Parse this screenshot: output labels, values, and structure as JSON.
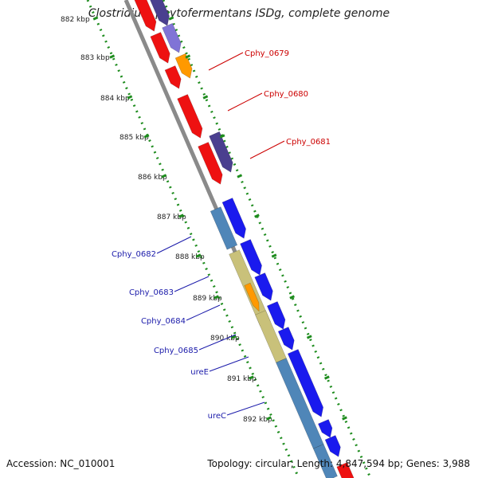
{
  "title": "Clostridium phytofermentans ISDg, complete genome",
  "kbp_labels": [
    {
      "text": "882 kbp"
    },
    {
      "text": "883 kbp"
    },
    {
      "text": "884 kbp"
    },
    {
      "text": "885 kbp"
    },
    {
      "text": "886 kbp"
    },
    {
      "text": "887 kbp"
    },
    {
      "text": "888 kbp"
    },
    {
      "text": "889 kbp"
    },
    {
      "text": "890 kbp"
    },
    {
      "text": "891 kbp"
    },
    {
      "text": "892 kbp"
    }
  ],
  "gene_labels": [
    {
      "text": "Cphy_0679",
      "color": "#cc0000"
    },
    {
      "text": "Cphy_0680",
      "color": "#cc0000"
    },
    {
      "text": "Cphy_0681",
      "color": "#cc0000"
    },
    {
      "text": "Cphy_0682",
      "color": "#1a1aaa"
    },
    {
      "text": "Cphy_0683",
      "color": "#1a1aaa"
    },
    {
      "text": "Cphy_0684",
      "color": "#1a1aaa"
    },
    {
      "text": "Cphy_0685",
      "color": "#1a1aaa"
    },
    {
      "text": "ureE",
      "color": "#1a1aaa"
    },
    {
      "text": "ureC",
      "color": "#1a1aaa"
    }
  ],
  "colors": {
    "backbone": "#8a8a8a",
    "tick_green": "#1e8c1e",
    "red": "#ee1111",
    "blue": "#1a1aee",
    "purple": "#4a3f8f",
    "lavender": "#8074d6",
    "orange": "#ff9900",
    "steel": "#4f86b8",
    "khaki": "#c9c17a"
  },
  "footer": {
    "accession": "Accession: NC_010001",
    "topology": "Topology: circular; Length: 4,847,594 bp; Genes: 3,988"
  }
}
